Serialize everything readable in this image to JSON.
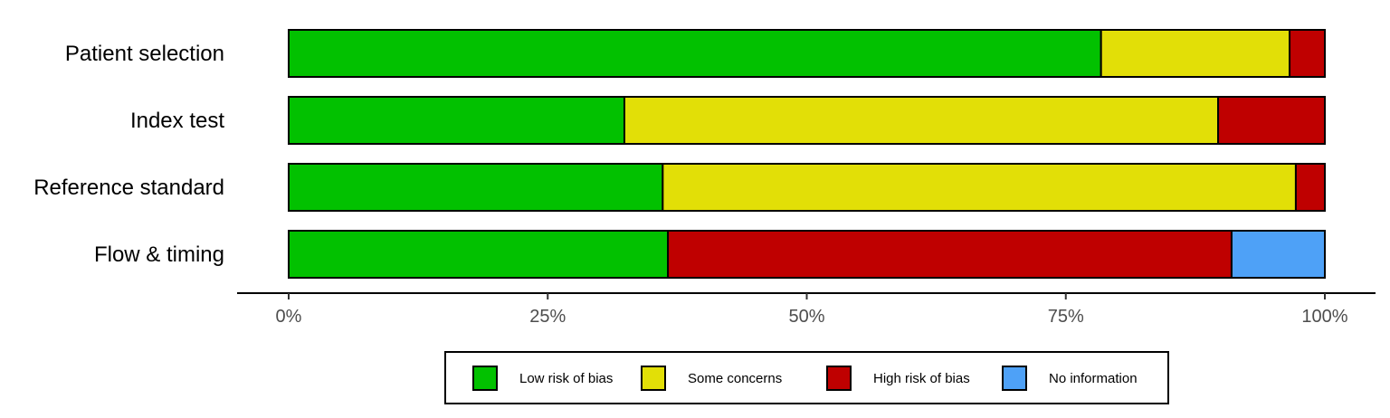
{
  "chart_data": {
    "type": "bar",
    "orientation": "horizontal",
    "stacked": true,
    "normalized": true,
    "categories": [
      "Patient selection",
      "Index test",
      "Reference standard",
      "Flow & timing"
    ],
    "series": [
      {
        "name": "Low risk of bias",
        "color": "#02C100",
        "values": [
          78.4,
          32.4,
          36.1,
          36.6
        ]
      },
      {
        "name": "Some concerns",
        "color": "#E2DF07",
        "values": [
          18.2,
          57.3,
          61.1,
          0
        ]
      },
      {
        "name": "High risk of bias",
        "color": "#BF0000",
        "values": [
          3.4,
          10.3,
          2.8,
          54.4
        ]
      },
      {
        "name": "No information",
        "color": "#4EA1F7",
        "values": [
          0,
          0,
          0,
          9.0
        ]
      }
    ],
    "xlim": [
      0,
      100
    ],
    "x_ticks": [
      0,
      25,
      50,
      75,
      100
    ],
    "x_tick_labels": [
      "0%",
      "25%",
      "50%",
      "75%",
      "100%"
    ],
    "grid": false,
    "legend_position": "bottom"
  }
}
